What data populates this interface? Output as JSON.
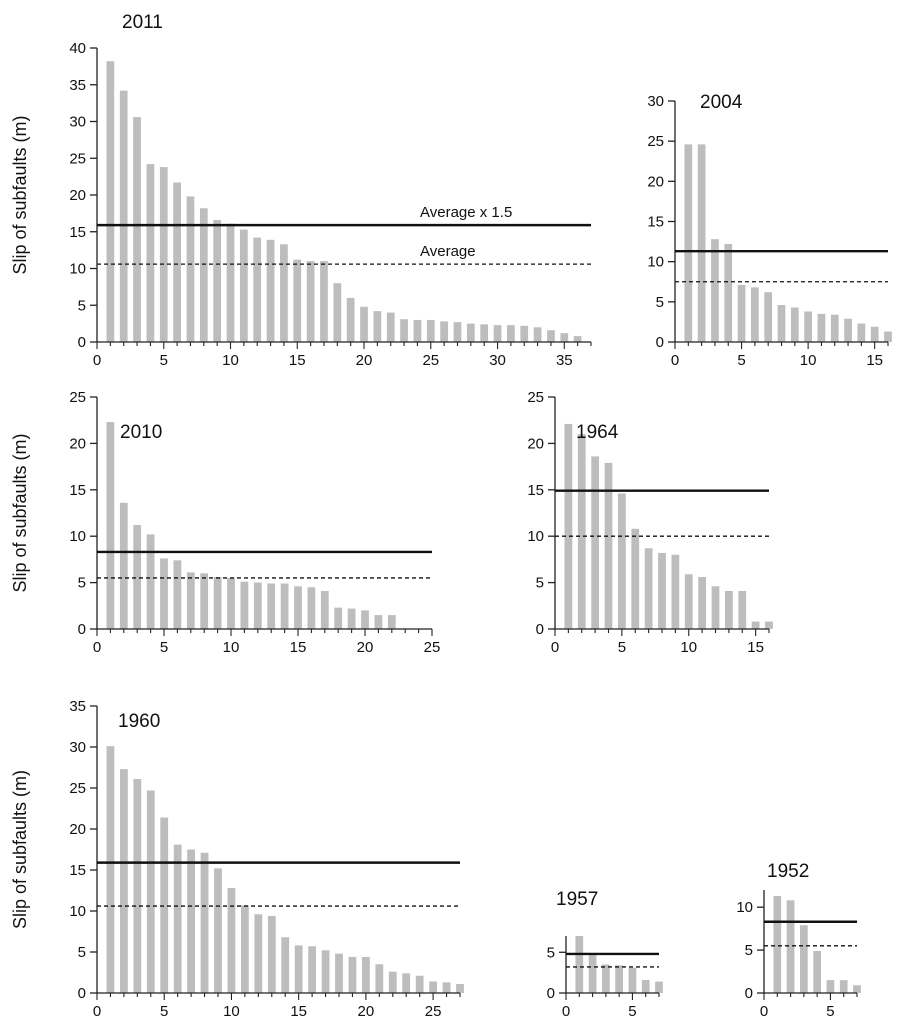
{
  "colors": {
    "bar": "#bdbdbd",
    "axis": "#222222",
    "line": "#111111",
    "background": "#ffffff"
  },
  "chart_data": [
    {
      "type": "bar",
      "title": "2011",
      "ylabel": "Slip of subfaults (m)",
      "xlim": [
        0,
        37
      ],
      "ylim": [
        0,
        40
      ],
      "xticks": [
        0,
        5,
        10,
        15,
        20,
        25,
        30,
        35
      ],
      "yticks": [
        0,
        5,
        10,
        15,
        20,
        25,
        30,
        35,
        40
      ],
      "x": [
        1,
        2,
        3,
        4,
        5,
        6,
        7,
        8,
        9,
        10,
        11,
        12,
        13,
        14,
        15,
        16,
        17,
        18,
        19,
        20,
        21,
        22,
        23,
        24,
        25,
        26,
        27,
        28,
        29,
        30,
        31,
        32,
        33,
        34,
        35,
        36
      ],
      "values": [
        38.2,
        34.2,
        30.6,
        24.2,
        23.8,
        21.7,
        19.8,
        18.2,
        16.6,
        16.1,
        15.3,
        14.2,
        13.9,
        13.3,
        11.2,
        11.0,
        11.0,
        8.0,
        6.0,
        4.8,
        4.2,
        4.0,
        3.1,
        3.0,
        3.0,
        2.8,
        2.7,
        2.5,
        2.4,
        2.3,
        2.3,
        2.2,
        2.0,
        1.6,
        1.2,
        0.8
      ],
      "hlines": [
        {
          "y": 15.9,
          "style": "solid",
          "label": "Average x 1.5"
        },
        {
          "y": 10.6,
          "style": "dashed",
          "label": "Average"
        }
      ]
    },
    {
      "type": "bar",
      "title": "2004",
      "ylabel": "",
      "xlim": [
        0,
        16
      ],
      "ylim": [
        0,
        30
      ],
      "xticks": [
        0,
        5,
        10,
        15
      ],
      "yticks": [
        0,
        5,
        10,
        15,
        20,
        25,
        30
      ],
      "x": [
        1,
        2,
        3,
        4,
        5,
        6,
        7,
        8,
        9,
        10,
        11,
        12,
        13,
        14,
        15,
        16
      ],
      "values": [
        24.6,
        24.6,
        12.8,
        12.2,
        7.1,
        6.8,
        6.2,
        4.6,
        4.3,
        3.8,
        3.5,
        3.4,
        2.9,
        2.3,
        1.9,
        1.3
      ],
      "hlines": [
        {
          "y": 11.3,
          "style": "solid",
          "label": ""
        },
        {
          "y": 7.5,
          "style": "dashed",
          "label": ""
        }
      ]
    },
    {
      "type": "bar",
      "title": "2010",
      "ylabel": "Slip of subfaults (m)",
      "xlim": [
        0,
        25
      ],
      "ylim": [
        0,
        25
      ],
      "xticks": [
        0,
        5,
        10,
        15,
        20,
        25
      ],
      "yticks": [
        0,
        5,
        10,
        15,
        20,
        25
      ],
      "x": [
        1,
        2,
        3,
        4,
        5,
        6,
        7,
        8,
        9,
        10,
        11,
        12,
        13,
        14,
        15,
        16,
        17,
        18,
        19,
        20,
        21,
        22
      ],
      "values": [
        22.3,
        13.6,
        11.2,
        10.2,
        7.6,
        7.4,
        6.1,
        6.0,
        5.6,
        5.5,
        5.1,
        5.0,
        4.9,
        4.9,
        4.6,
        4.5,
        4.1,
        2.3,
        2.2,
        2.0,
        1.5,
        1.5
      ],
      "hlines": [
        {
          "y": 8.3,
          "style": "solid",
          "label": ""
        },
        {
          "y": 5.5,
          "style": "dashed",
          "label": ""
        }
      ]
    },
    {
      "type": "bar",
      "title": "1964",
      "ylabel": "",
      "xlim": [
        0,
        16
      ],
      "ylim": [
        0,
        25
      ],
      "xticks": [
        0,
        5,
        10,
        15
      ],
      "yticks": [
        0,
        5,
        10,
        15,
        20,
        25
      ],
      "x": [
        1,
        2,
        3,
        4,
        5,
        6,
        7,
        8,
        9,
        10,
        11,
        12,
        13,
        14,
        15,
        16
      ],
      "values": [
        22.1,
        21.0,
        18.6,
        17.9,
        14.6,
        10.8,
        8.7,
        8.2,
        8.0,
        5.9,
        5.6,
        4.6,
        4.1,
        4.1,
        0.8,
        0.8
      ],
      "hlines": [
        {
          "y": 14.9,
          "style": "solid",
          "label": ""
        },
        {
          "y": 10.0,
          "style": "dashed",
          "label": ""
        }
      ]
    },
    {
      "type": "bar",
      "title": "1960",
      "ylabel": "Slip of subfaults (m)",
      "xlim": [
        0,
        27
      ],
      "ylim": [
        0,
        35
      ],
      "xticks": [
        0,
        5,
        10,
        15,
        20,
        25
      ],
      "yticks": [
        0,
        5,
        10,
        15,
        20,
        25,
        30,
        35
      ],
      "x": [
        1,
        2,
        3,
        4,
        5,
        6,
        7,
        8,
        9,
        10,
        11,
        12,
        13,
        14,
        15,
        16,
        17,
        18,
        19,
        20,
        21,
        22,
        23,
        24,
        25,
        26,
        27
      ],
      "values": [
        30.1,
        27.3,
        26.1,
        24.7,
        21.4,
        18.1,
        17.5,
        17.1,
        15.2,
        12.8,
        10.7,
        9.6,
        9.4,
        6.8,
        5.8,
        5.7,
        5.2,
        4.8,
        4.4,
        4.4,
        3.5,
        2.6,
        2.4,
        2.1,
        1.4,
        1.3,
        1.1
      ],
      "hlines": [
        {
          "y": 15.9,
          "style": "solid",
          "label": ""
        },
        {
          "y": 10.6,
          "style": "dashed",
          "label": ""
        }
      ]
    },
    {
      "type": "bar",
      "title": "1957",
      "ylabel": "",
      "xlim": [
        0,
        7
      ],
      "ylim": [
        0,
        7
      ],
      "xticks": [
        0,
        5
      ],
      "yticks": [
        0,
        5
      ],
      "x": [
        1,
        2,
        3,
        4,
        5,
        6,
        7
      ],
      "values": [
        7.0,
        4.9,
        3.5,
        3.4,
        3.1,
        1.6,
        1.4
      ],
      "hlines": [
        {
          "y": 4.8,
          "style": "solid",
          "label": ""
        },
        {
          "y": 3.2,
          "style": "dashed",
          "label": ""
        }
      ]
    },
    {
      "type": "bar",
      "title": "1952",
      "ylabel": "",
      "xlim": [
        0,
        7
      ],
      "ylim": [
        0,
        12
      ],
      "xticks": [
        0,
        5
      ],
      "yticks": [
        0,
        5,
        10
      ],
      "x": [
        1,
        2,
        3,
        4,
        5,
        6,
        7
      ],
      "values": [
        11.3,
        10.8,
        7.9,
        4.9,
        1.5,
        1.5,
        0.9
      ],
      "hlines": [
        {
          "y": 8.3,
          "style": "solid",
          "label": ""
        },
        {
          "y": 5.5,
          "style": "dashed",
          "label": ""
        }
      ]
    }
  ]
}
